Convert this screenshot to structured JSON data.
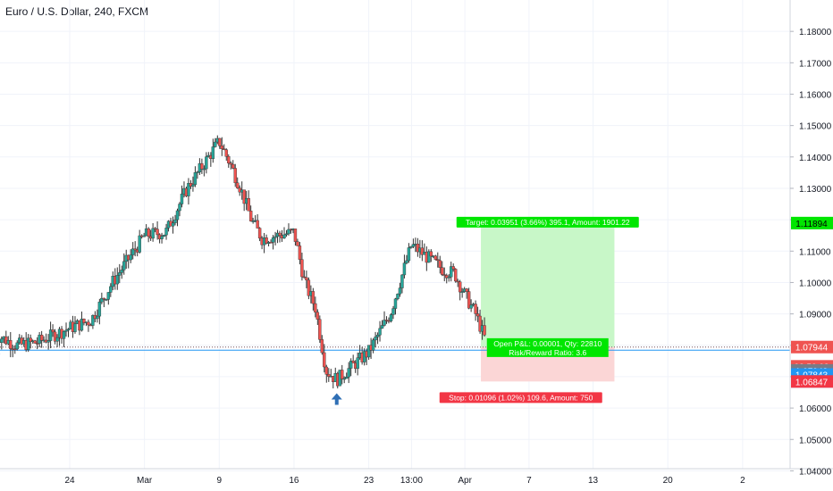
{
  "header": {
    "symbol_title": "Euro / U.S. Dollar, 240, FXCM"
  },
  "colors": {
    "bull": "#26a69a",
    "bear": "#ef5350",
    "candle_bull_body": "#26a69a",
    "candle_bear_body": "#ef5350",
    "accent_blue": "#2962ff",
    "target_zone": "#c8f7c8",
    "stop_zone": "#fbd6d6",
    "target_label_bg": "#00e600",
    "stop_label_bg": "#f23645",
    "support_line": "#2196f3",
    "arrow": "#2f6fb5",
    "grid": "#f0f3fa"
  },
  "chart_data": {
    "type": "candlestick",
    "title": "Euro / U.S. Dollar, 240, FXCM",
    "y_axis": {
      "ylim": [
        1.035,
        1.19
      ],
      "ticks": [
        "1.04000",
        "1.05000",
        "1.06000",
        "1.07000",
        "1.08000",
        "1.09000",
        "1.10000",
        "1.11000",
        "1.12000",
        "1.13000",
        "1.14000",
        "1.15000",
        "1.16000",
        "1.17000",
        "1.18000"
      ]
    },
    "x_axis": {
      "ticks": [
        {
          "label": "24",
          "date": "2020-02-24"
        },
        {
          "label": "Mar",
          "date": "2020-03-02"
        },
        {
          "label": "9",
          "date": "2020-03-09"
        },
        {
          "label": "16",
          "date": "2020-03-16"
        },
        {
          "label": "23",
          "date": "2020-03-23"
        },
        {
          "label": "13:00",
          "date": "2020-03-27"
        },
        {
          "label": "Apr",
          "date": "2020-04-01"
        },
        {
          "label": "7",
          "date": "2020-04-07"
        },
        {
          "label": "13",
          "date": "2020-04-13"
        },
        {
          "label": "20",
          "date": "2020-04-20"
        },
        {
          "label": "2",
          "date": "2020-04-27"
        }
      ]
    },
    "price_path": [
      [
        "2020-02-17",
        1.0835
      ],
      [
        "2020-02-19",
        1.08
      ],
      [
        "2020-02-21",
        1.081
      ],
      [
        "2020-02-24",
        1.0855
      ],
      [
        "2020-02-26",
        1.088
      ],
      [
        "2020-02-28",
        1.1
      ],
      [
        "2020-03-02",
        1.115
      ],
      [
        "2020-03-04",
        1.116
      ],
      [
        "2020-03-05",
        1.123
      ],
      [
        "2020-03-06",
        1.13
      ],
      [
        "2020-03-09",
        1.145
      ],
      [
        "2020-03-10",
        1.138
      ],
      [
        "2020-03-11",
        1.13
      ],
      [
        "2020-03-12",
        1.12
      ],
      [
        "2020-03-13",
        1.114
      ],
      [
        "2020-03-16",
        1.116
      ],
      [
        "2020-03-17",
        1.1
      ],
      [
        "2020-03-18",
        1.092
      ],
      [
        "2020-03-19",
        1.072
      ],
      [
        "2020-03-20",
        1.069
      ],
      [
        "2020-03-23",
        1.078
      ],
      [
        "2020-03-24",
        1.084
      ],
      [
        "2020-03-25",
        1.09
      ],
      [
        "2020-03-26",
        1.101
      ],
      [
        "2020-03-27",
        1.112
      ],
      [
        "2020-03-30",
        1.104
      ],
      [
        "2020-03-31",
        1.103
      ],
      [
        "2020-04-01",
        1.096
      ],
      [
        "2020-04-02",
        1.09
      ],
      [
        "2020-04-03",
        1.081
      ]
    ],
    "position": {
      "entry_price": 1.0794,
      "target_price": 1.11894,
      "stop_price": 1.06847,
      "start_date": "2020-04-03",
      "end_date": "2020-04-15",
      "target_label": "Target: 0.03951 (3.66%) 395.1, Amount: 1901.22",
      "stop_label": "Stop: 0.01096 (1.02%) 109.6, Amount: 750",
      "open_label": "Open P&L: 0.00001, Qty: 22810",
      "ratio_label": "Risk/Reward Ratio: 3.6"
    },
    "horizontal_lines": [
      {
        "price": 1.07843,
        "color": "#2196f3",
        "style": "solid"
      },
      {
        "price": 1.07944,
        "color": "#ef5350",
        "style": "dotted"
      },
      {
        "price": 1.07943,
        "color": "#787b86",
        "style": "dotted"
      }
    ],
    "arrows": [
      {
        "date": "2020-02-17",
        "price": 1.0775
      },
      {
        "date": "2020-03-20",
        "price": 1.063
      }
    ],
    "price_labels": [
      {
        "text": "1.11894",
        "price": 1.11894,
        "bg": "#00e600",
        "fg": "#000000"
      },
      {
        "text": "1.07944",
        "price": 1.07944,
        "bg": "#ef5350",
        "fg": "#ffffff"
      },
      {
        "text": "03:50:08",
        "price": 1.0733,
        "bg": "#ef5350",
        "fg": "#ffffff"
      },
      {
        "text": "1.07943",
        "price": 1.072,
        "bg": "#787b86",
        "fg": "#ffffff"
      },
      {
        "text": "1.07843",
        "price": 1.0707,
        "bg": "#2196f3",
        "fg": "#ffffff"
      },
      {
        "text": "1.06852",
        "price": 1.0685,
        "bg": "#2196f3",
        "fg": "#ffffff"
      },
      {
        "text": "1.06847",
        "price": 1.06847,
        "bg": "#f23645",
        "fg": "#ffffff"
      }
    ],
    "grid": true,
    "legend": "none"
  }
}
